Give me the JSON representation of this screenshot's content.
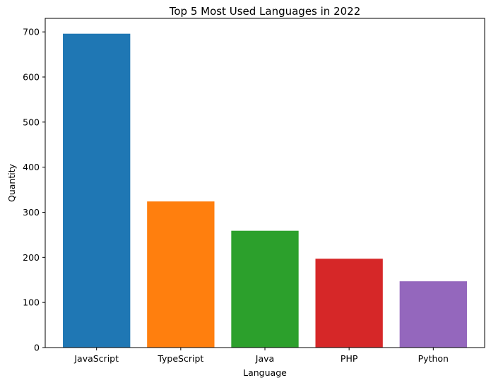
{
  "chart_data": {
    "type": "bar",
    "title": "Top 5 Most Used Languages in 2022",
    "xlabel": "Language",
    "ylabel": "Quantity",
    "categories": [
      "JavaScript",
      "TypeScript",
      "Java",
      "PHP",
      "Python"
    ],
    "values": [
      696,
      324,
      259,
      197,
      147
    ],
    "colors": [
      "#1f77b4",
      "#ff7f0e",
      "#2ca02c",
      "#d62728",
      "#9467bd"
    ],
    "ylim": [
      0,
      730
    ],
    "yticks": [
      0,
      100,
      200,
      300,
      400,
      500,
      600,
      700
    ],
    "grid": false,
    "legend": "none"
  }
}
